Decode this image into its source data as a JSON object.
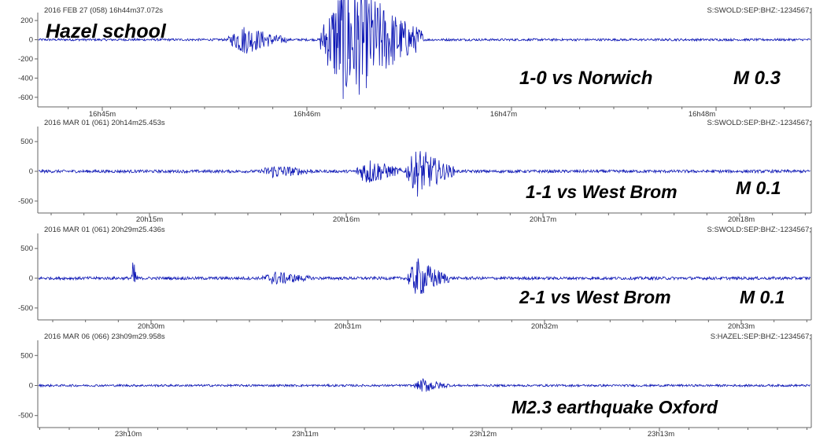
{
  "panels": [
    {
      "header_left": "2016 FEB 27 (058)  16h44m37.072s",
      "header_right": "S:SWOLD:SEP:BHZ:-1234567;",
      "annotations": [
        "Hazel school",
        "1-0 vs Norwich",
        "M 0.3"
      ],
      "y_ticks": [
        "200",
        "0",
        "-200",
        "-400",
        "-600"
      ],
      "x_ticks": [
        "16h45m",
        "16h46m",
        "16h47m",
        "16h48m"
      ]
    },
    {
      "header_left": "2016 MAR 01 (061)  20h14m25.453s",
      "header_right": "S:SWOLD:SEP:BHZ:-1234567;",
      "annotations": [
        "1-1 vs West Brom",
        "M 0.1"
      ],
      "y_ticks": [
        "500",
        "0",
        "-500"
      ],
      "x_ticks": [
        "20h15m",
        "20h16m",
        "20h17m",
        "20h18m"
      ]
    },
    {
      "header_left": "2016 MAR 01 (061)  20h29m25.436s",
      "header_right": "S:SWOLD:SEP:BHZ:-1234567;",
      "annotations": [
        "2-1 vs West Brom",
        "M 0.1"
      ],
      "y_ticks": [
        "500",
        "0",
        "-500"
      ],
      "x_ticks": [
        "20h30m",
        "20h31m",
        "20h32m",
        "20h33m"
      ]
    },
    {
      "header_left": "2016 MAR 06 (066)  23h09m29.958s",
      "header_right": "S:HAZEL:SEP:BHZ:-1234567;",
      "annotations": [
        "M2.3 earthquake Oxford"
      ],
      "y_ticks": [
        "500",
        "0",
        "-500"
      ],
      "x_ticks": [
        "23h10m",
        "23h11m",
        "23h12m",
        "23h13m"
      ]
    }
  ],
  "colors": {
    "trace": "#0a14b4",
    "axis": "#666666",
    "text": "#333333"
  },
  "chart_data": [
    {
      "type": "line",
      "x_unit": "time",
      "x_ticks": [
        "16h45m",
        "16h46m",
        "16h47m",
        "16h48m"
      ],
      "ylim": [
        -700,
        250
      ],
      "y_ticks": [
        200,
        0,
        -200,
        -400,
        -600
      ],
      "series": [
        {
          "bursts": [
            {
              "start": "16h45m37s",
              "end": "16h45m54s",
              "amplitude": 150
            },
            {
              "start": "16h46m04s",
              "end": "16h46m34s",
              "amplitude": 700
            }
          ],
          "noise": 12
        }
      ]
    },
    {
      "type": "line",
      "x_unit": "time",
      "x_ticks": [
        "20h15m",
        "20h16m",
        "20h17m",
        "20h18m"
      ],
      "ylim": [
        -700,
        700
      ],
      "y_ticks": [
        500,
        0,
        -500
      ],
      "series": [
        {
          "bursts": [
            {
              "start": "20h15m34s",
              "end": "20h15m50s",
              "amplitude": 100
            },
            {
              "start": "20h16m03s",
              "end": "20h16m17s",
              "amplitude": 220
            },
            {
              "start": "20h16m18s",
              "end": "20h16m33s",
              "amplitude": 400
            }
          ],
          "noise": 25
        }
      ]
    },
    {
      "type": "line",
      "x_unit": "time",
      "x_ticks": [
        "20h30m",
        "20h31m",
        "20h32m",
        "20h33m"
      ],
      "ylim": [
        -700,
        700
      ],
      "y_ticks": [
        500,
        0,
        -500
      ],
      "series": [
        {
          "bursts": [
            {
              "start": "20h29m54s",
              "end": "20h29m56s",
              "amplitude": 300
            },
            {
              "start": "20h30m34s",
              "end": "20h30m49s",
              "amplitude": 100
            },
            {
              "start": "20h31m18s",
              "end": "20h31m31s",
              "amplitude": 320
            }
          ],
          "noise": 25
        }
      ]
    },
    {
      "type": "line",
      "x_unit": "time",
      "x_ticks": [
        "23h10m",
        "23h11m",
        "23h12m",
        "23h13m"
      ],
      "ylim": [
        -700,
        700
      ],
      "y_ticks": [
        500,
        0,
        -500
      ],
      "series": [
        {
          "bursts": [
            {
              "start": "23h11m37s",
              "end": "23h11m49s",
              "amplitude": 110
            }
          ],
          "noise": 18
        }
      ]
    }
  ]
}
